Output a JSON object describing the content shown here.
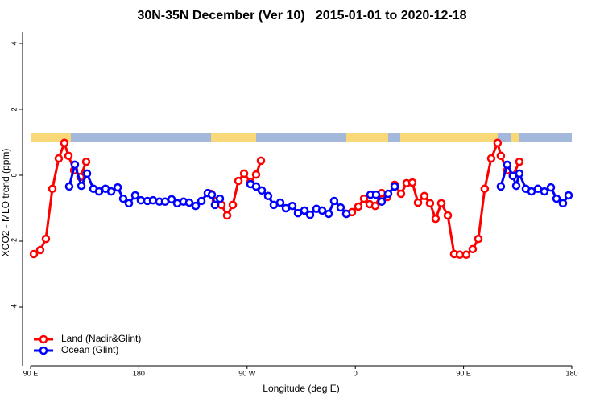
{
  "chart_data": {
    "type": "line",
    "title": "30N-35N December (Ver 10)   2015-01-01 to 2020-12-18",
    "xlabel": "Longitude (deg E)",
    "ylabel": "XCO2 - MLO trend (ppm)",
    "xlim": [
      90,
      540
    ],
    "ylim": [
      -5.78,
      4.34
    ],
    "xticks": [
      {
        "value": 90,
        "label": "90 E"
      },
      180,
      {
        "value": 270,
        "label": "90 W"
      },
      {
        "value": 360,
        "label": "0"
      },
      {
        "value": 450,
        "label": "90 E"
      },
      {
        "value": 540,
        "label": "180"
      }
    ],
    "yticks": [
      -4,
      -2,
      0,
      2,
      4
    ],
    "legend": "bottomleft",
    "series": [
      {
        "name": "Land (Nadir&Glint)",
        "color": "#ff0000",
        "x": [
          92.7,
          98,
          102.7,
          108.1,
          113.4,
          118.1,
          121.5,
          126.2,
          131.5,
          136.2,
          null,
          240,
          244,
          248.7,
          253.4,
          258.1,
          262.8,
          267.5,
          272.8,
          277.5,
          281.5,
          null,
          352.5,
          357.2,
          362.5,
          367.2,
          371.9,
          376.6,
          381.9,
          386.6,
          392.7,
          398,
          402.7,
          407.4,
          412.1,
          417.4,
          422.1,
          426.8,
          431.5,
          436.9,
          442.2,
          446.9,
          452.2,
          457.6,
          462.3,
          467.6,
          473,
          478.3,
          481,
          486.3,
          491,
          496.4
        ],
        "values": [
          -2.39,
          -2.27,
          -1.93,
          -0.41,
          0.51,
          0.98,
          0.59,
          0.15,
          -0.05,
          0.41,
          null,
          -0.56,
          -0.78,
          -0.9,
          -1.22,
          -0.9,
          -0.17,
          0.05,
          -0.2,
          0.02,
          0.44,
          null,
          -1.17,
          -1.12,
          -0.95,
          -0.71,
          -0.88,
          -0.93,
          -0.54,
          -0.66,
          -0.29,
          -0.56,
          -0.24,
          -0.22,
          -0.83,
          -0.63,
          -0.85,
          -1.32,
          -0.85,
          -1.22,
          -2.39,
          -2.41,
          -2.41,
          -2.24,
          -1.93,
          -0.41,
          0.51,
          0.98,
          0.59,
          0.15,
          -0.02,
          0.41
        ]
      },
      {
        "name": "Ocean (Glint)",
        "color": "#0000ff",
        "x": [
          122.1,
          126.8,
          132.2,
          136.9,
          142.2,
          146.9,
          152.3,
          157,
          162.4,
          167,
          171.7,
          177,
          181.7,
          187.1,
          191.8,
          197.1,
          201.8,
          207.2,
          211.9,
          217.2,
          221.9,
          227.3,
          232,
          237.3,
          240.7,
          243.3,
          247.4,
          null,
          272.8,
          277.5,
          282.2,
          287.5,
          292.2,
          297.6,
          302.3,
          307.6,
          312.3,
          317.7,
          322.4,
          327.7,
          332.4,
          337.8,
          342.4,
          347.8,
          352.5,
          null,
          372.6,
          377.3,
          381.9,
          387.3,
          392.7,
          null,
          481,
          486.3,
          491,
          493.8,
          496.4,
          501.8,
          506.5,
          511.8,
          517.2,
          522.6,
          527.3,
          532.6,
          537.3
        ],
        "values": [
          -0.34,
          0.32,
          -0.32,
          0.05,
          -0.41,
          -0.49,
          -0.41,
          -0.49,
          -0.37,
          -0.71,
          -0.85,
          -0.61,
          -0.76,
          -0.78,
          -0.76,
          -0.8,
          -0.8,
          -0.73,
          -0.85,
          -0.8,
          -0.83,
          -0.93,
          -0.78,
          -0.54,
          -0.59,
          -0.9,
          -0.71,
          null,
          -0.27,
          -0.34,
          -0.46,
          -0.63,
          -0.9,
          -0.83,
          -1.0,
          -0.93,
          -1.15,
          -1.07,
          -1.2,
          -1.02,
          -1.07,
          -1.17,
          -0.78,
          -0.98,
          -1.17,
          null,
          -0.59,
          -0.59,
          -0.8,
          -0.56,
          -0.34,
          null,
          -0.34,
          0.32,
          -0.02,
          -0.32,
          0.05,
          -0.41,
          -0.49,
          -0.41,
          -0.49,
          -0.37,
          -0.71,
          -0.85,
          -0.61
        ]
      }
    ]
  }
}
